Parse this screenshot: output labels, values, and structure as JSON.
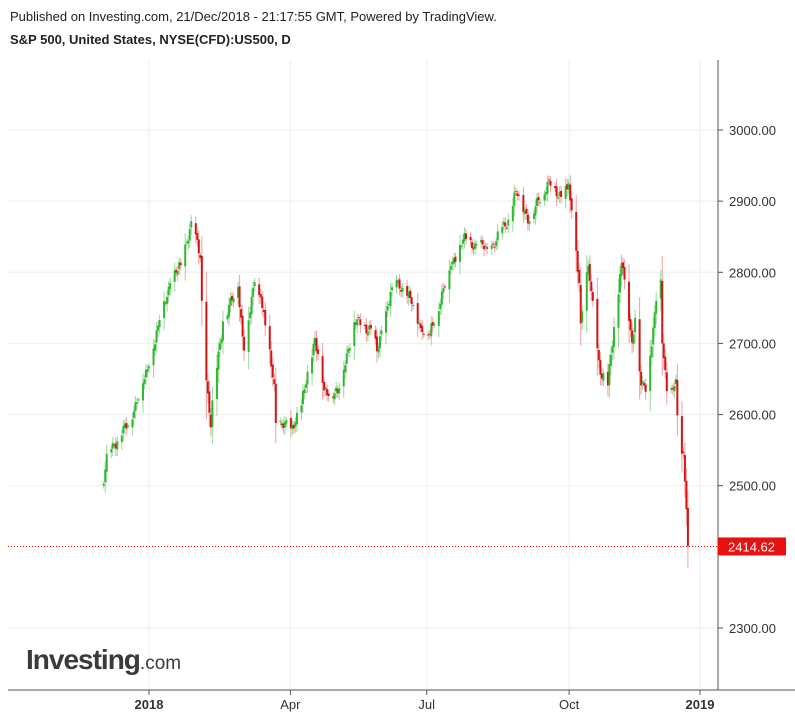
{
  "header": {
    "published": "Published on Investing.com, 21/Dec/2018 - 21:17:55 GMT, Powered by TradingView.",
    "symbol": "S&P 500, United States, NYSE(CFD):US500, D"
  },
  "logo": {
    "main": "Investing",
    "suffix": ".com"
  },
  "colors": {
    "up": "#2eb82e",
    "down": "#d41414",
    "last_price": "#e81010",
    "grid": "#eeeeee",
    "axis": "#555555"
  },
  "chart_data": {
    "type": "candlestick",
    "y_ticks": [
      "3000.00",
      "2900.00",
      "2800.00",
      "2700.00",
      "2600.00",
      "2500.00",
      "2300.00"
    ],
    "x_ticks": [
      "2018",
      "Apr",
      "Jul",
      "Oct",
      "2019"
    ],
    "ylim": [
      2220,
      3100
    ],
    "last_price": "2414.62",
    "anchors": [
      [
        "2017-11-29",
        2503
      ],
      [
        "2017-12-01",
        2545
      ],
      [
        "2017-12-15",
        2585
      ],
      [
        "2017-12-29",
        2668
      ],
      [
        "2018-01-04",
        2725
      ],
      [
        "2018-01-12",
        2785
      ],
      [
        "2018-01-19",
        2810
      ],
      [
        "2018-01-26",
        2872
      ],
      [
        "2018-02-01",
        2820
      ],
      [
        "2018-02-02",
        2760
      ],
      [
        "2018-02-05",
        2648
      ],
      [
        "2018-02-08",
        2582
      ],
      [
        "2018-02-09",
        2620
      ],
      [
        "2018-02-16",
        2731
      ],
      [
        "2018-02-26",
        2779
      ],
      [
        "2018-03-02",
        2690
      ],
      [
        "2018-03-09",
        2786
      ],
      [
        "2018-03-13",
        2765
      ],
      [
        "2018-03-22",
        2643
      ],
      [
        "2018-03-23",
        2588
      ],
      [
        "2018-04-02",
        2581
      ],
      [
        "2018-04-09",
        2613
      ],
      [
        "2018-04-18",
        2708
      ],
      [
        "2018-04-24",
        2634
      ],
      [
        "2018-05-03",
        2630
      ],
      [
        "2018-05-14",
        2730
      ],
      [
        "2018-05-25",
        2721
      ],
      [
        "2018-05-29",
        2689
      ],
      [
        "2018-06-08",
        2779
      ],
      [
        "2018-06-12",
        2787
      ],
      [
        "2018-06-22",
        2754
      ],
      [
        "2018-06-28",
        2716
      ],
      [
        "2018-07-03",
        2713
      ],
      [
        "2018-07-17",
        2809
      ],
      [
        "2018-07-25",
        2846
      ],
      [
        "2018-08-10",
        2833
      ],
      [
        "2018-08-14",
        2839
      ],
      [
        "2018-08-24",
        2874
      ],
      [
        "2018-08-29",
        2914
      ],
      [
        "2018-09-07",
        2872
      ],
      [
        "2018-09-20",
        2930
      ],
      [
        "2018-09-26",
        2906
      ],
      [
        "2018-10-03",
        2925
      ],
      [
        "2018-10-04",
        2901
      ],
      [
        "2018-10-10",
        2785
      ],
      [
        "2018-10-11",
        2728
      ],
      [
        "2018-10-16",
        2809
      ],
      [
        "2018-10-24",
        2656
      ],
      [
        "2018-10-26",
        2658
      ],
      [
        "2018-10-29",
        2641
      ],
      [
        "2018-11-02",
        2723
      ],
      [
        "2018-11-07",
        2813
      ],
      [
        "2018-11-08",
        2806
      ],
      [
        "2018-11-14",
        2701
      ],
      [
        "2018-11-16",
        2736
      ],
      [
        "2018-11-20",
        2641
      ],
      [
        "2018-11-23",
        2632
      ],
      [
        "2018-11-30",
        2760
      ],
      [
        "2018-12-03",
        2790
      ],
      [
        "2018-12-04",
        2700
      ],
      [
        "2018-12-07",
        2633
      ],
      [
        "2018-12-10",
        2637
      ],
      [
        "2018-12-13",
        2650
      ],
      [
        "2018-12-14",
        2599
      ],
      [
        "2018-12-17",
        2545
      ],
      [
        "2018-12-18",
        2546
      ],
      [
        "2018-12-19",
        2506
      ],
      [
        "2018-12-20",
        2467
      ],
      [
        "2018-12-21",
        2415
      ]
    ]
  }
}
